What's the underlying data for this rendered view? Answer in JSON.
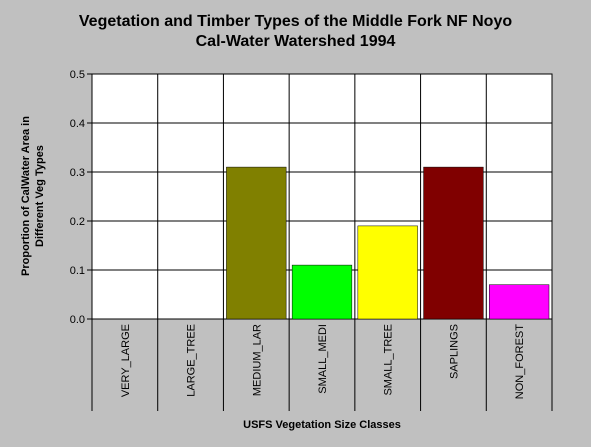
{
  "chart_data": {
    "type": "bar",
    "title": "Vegetation and Timber Types of the Middle Fork NF Noyo\nCal-Water Watershed 1994",
    "xlabel": "USFS Vegetation Size Classes",
    "ylabel": "Proportion of CalWater Area in\nDifferent Veg Types",
    "categories": [
      "VERY_LARGE",
      "LARGE_TREE",
      "MEDIUM_LAR",
      "SMALL_MEDI",
      "SMALL_TREE",
      "SAPLINGS",
      "NON_FOREST"
    ],
    "values": [
      0,
      0,
      0.31,
      0.11,
      0.19,
      0.31,
      0.07
    ],
    "colors": [
      "#000080",
      "#008080",
      "#808000",
      "#00ff00",
      "#ffff00",
      "#800000",
      "#ff00ff"
    ],
    "ylim": [
      0,
      0.5
    ],
    "yticks": [
      "0.0",
      "0.1",
      "0.2",
      "0.3",
      "0.4",
      "0.5"
    ],
    "grid": true,
    "plot_background": "#ffffff"
  }
}
